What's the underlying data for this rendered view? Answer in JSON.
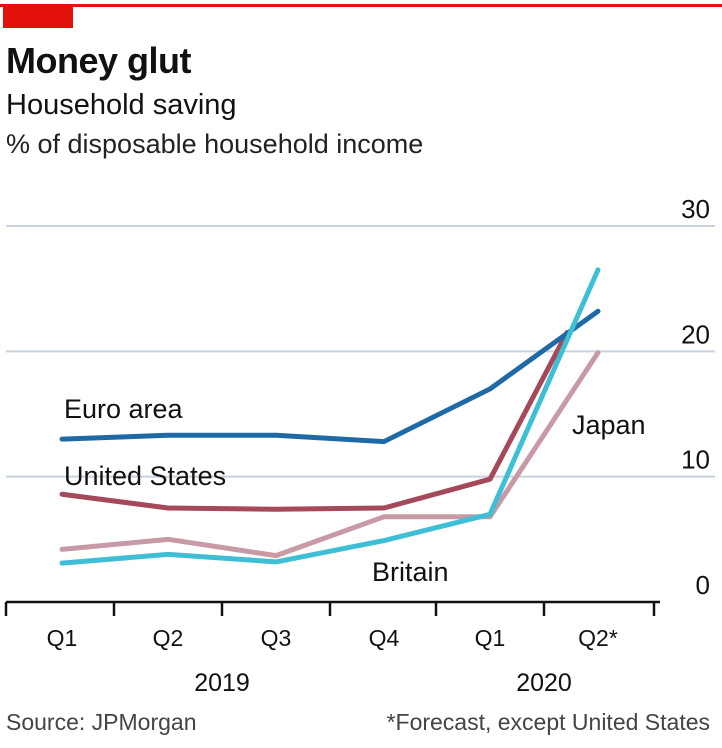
{
  "header": {
    "title": "Money glut",
    "subtitle": "Household saving",
    "unit": "% of disposable household income"
  },
  "chart_data": {
    "type": "line",
    "title": "Money glut",
    "subtitle": "Household saving",
    "ylabel": "% of disposable household income",
    "ylim": [
      0,
      30
    ],
    "yticks": [
      0,
      10,
      20,
      30
    ],
    "categories": [
      "Q1",
      "Q2",
      "Q3",
      "Q4",
      "Q1",
      "Q2*"
    ],
    "years": [
      {
        "label": "2019",
        "from": 0,
        "to": 3
      },
      {
        "label": "2020",
        "from": 4,
        "to": 5
      }
    ],
    "series": [
      {
        "name": "Euro area",
        "color": "#1f6aa5",
        "values": [
          13,
          13.3,
          13.3,
          12.8,
          17,
          23.2
        ]
      },
      {
        "name": "United States",
        "color": "#a4485a",
        "values": [
          8.6,
          7.5,
          7.4,
          7.5,
          9.8,
          null
        ]
      },
      {
        "name": "Japan",
        "color": "#c79aa5",
        "values": [
          4.2,
          5,
          3.7,
          6.8,
          6.8,
          19.9
        ]
      },
      {
        "name": "Britain",
        "color": "#3fbfd6",
        "values": [
          3.1,
          3.8,
          3.2,
          4.9,
          7,
          26.5
        ]
      }
    ],
    "us_q2_segment_end": 21.5,
    "grid": true
  },
  "footer": {
    "source": "Source: JPMorgan",
    "note": "*Forecast, except United States"
  }
}
